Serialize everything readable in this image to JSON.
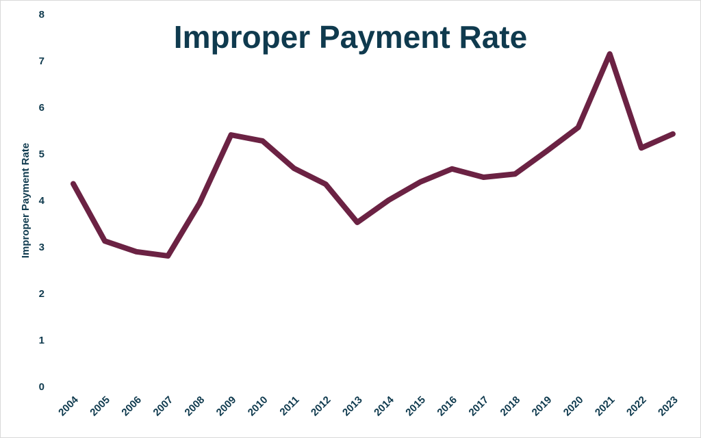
{
  "colors": {
    "line": "#6b2243",
    "text": "#0f3a4e"
  },
  "chart_data": {
    "type": "line",
    "title": "Improper Payment Rate",
    "xlabel": "",
    "ylabel": "Improper Payment Rate",
    "ylim": [
      0,
      8
    ],
    "yticks": [
      "0",
      "1",
      "2",
      "3",
      "4",
      "5",
      "6",
      "7",
      "8"
    ],
    "grid": false,
    "legend": "none",
    "categories": [
      "2004",
      "2005",
      "2006",
      "2007",
      "2008",
      "2009",
      "2010",
      "2011",
      "2012",
      "2013",
      "2014",
      "2015",
      "2016",
      "2017",
      "2018",
      "2019",
      "2020",
      "2021",
      "2022",
      "2023"
    ],
    "values": [
      4.36,
      3.13,
      2.9,
      2.81,
      3.94,
      5.41,
      5.28,
      4.69,
      4.35,
      3.53,
      4.01,
      4.4,
      4.68,
      4.5,
      4.57,
      5.06,
      5.57,
      7.15,
      5.13,
      5.43
    ]
  }
}
